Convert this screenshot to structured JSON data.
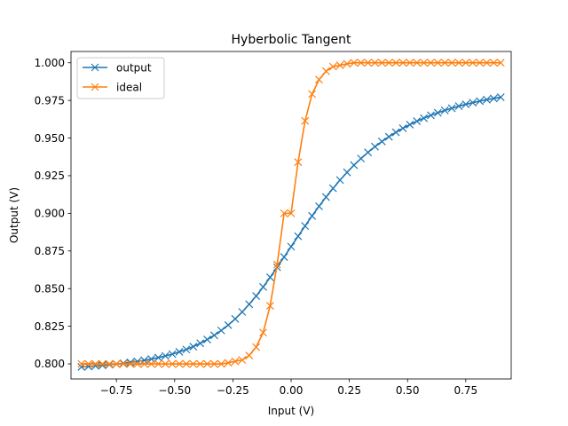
{
  "chart_data": {
    "type": "line",
    "title": "Hyberbolic Tangent",
    "xlabel": "Input (V)",
    "ylabel": "Output (V)",
    "xlim": [
      -0.945,
      0.945
    ],
    "ylim": [
      0.79,
      1.0075
    ],
    "xticks": [
      -0.75,
      -0.5,
      -0.25,
      0.0,
      0.25,
      0.5,
      0.75
    ],
    "xtick_labels": [
      "−0.75",
      "−0.50",
      "−0.25",
      "0.00",
      "0.25",
      "0.50",
      "0.75"
    ],
    "yticks": [
      0.8,
      0.825,
      0.85,
      0.875,
      0.9,
      0.925,
      0.95,
      0.975,
      1.0
    ],
    "ytick_labels": [
      "0.800",
      "0.825",
      "0.850",
      "0.875",
      "0.900",
      "0.925",
      "0.950",
      "0.975",
      "1.000"
    ],
    "grid": false,
    "legend_position": "top-left",
    "x": [
      -0.9,
      -0.87,
      -0.84,
      -0.81,
      -0.78,
      -0.75,
      -0.72,
      -0.69,
      -0.66,
      -0.63,
      -0.6,
      -0.57,
      -0.54,
      -0.51,
      -0.48,
      -0.45,
      -0.42,
      -0.39,
      -0.36,
      -0.33,
      -0.3,
      -0.27,
      -0.24,
      -0.21,
      -0.18,
      -0.15,
      -0.12,
      -0.09,
      -0.06,
      -0.03,
      0.0,
      0.03,
      0.06,
      0.09,
      0.12,
      0.15,
      0.18,
      0.21,
      0.24,
      0.27,
      0.3,
      0.33,
      0.36,
      0.39,
      0.42,
      0.45,
      0.48,
      0.51,
      0.54,
      0.57,
      0.6,
      0.63,
      0.66,
      0.69,
      0.72,
      0.75,
      0.78,
      0.81,
      0.84,
      0.87,
      0.9
    ],
    "series": [
      {
        "name": "output",
        "color": "#1f77b4",
        "marker": "x",
        "values": [
          0.798,
          0.7983,
          0.7987,
          0.7991,
          0.7995,
          0.7999,
          0.8004,
          0.801,
          0.8016,
          0.8024,
          0.8032,
          0.8042,
          0.8053,
          0.8065,
          0.808,
          0.8096,
          0.8115,
          0.8137,
          0.8162,
          0.819,
          0.8222,
          0.8258,
          0.8299,
          0.8345,
          0.8396,
          0.8451,
          0.8511,
          0.8575,
          0.8642,
          0.871,
          0.8779,
          0.8848,
          0.8916,
          0.8983,
          0.9047,
          0.9108,
          0.9166,
          0.9221,
          0.9272,
          0.932,
          0.9364,
          0.9405,
          0.9443,
          0.9477,
          0.9509,
          0.9538,
          0.9565,
          0.9589,
          0.9612,
          0.9632,
          0.9651,
          0.9668,
          0.9684,
          0.9698,
          0.9712,
          0.9724,
          0.9735,
          0.9745,
          0.9755,
          0.9763,
          0.9771
        ]
      },
      {
        "name": "ideal",
        "color": "#ff7f0e",
        "marker": "x",
        "values": [
          0.8,
          0.8,
          0.8,
          0.8,
          0.8,
          0.8,
          0.8,
          0.8,
          0.8,
          0.8,
          0.8,
          0.8,
          0.8,
          0.8,
          0.8,
          0.8,
          0.8,
          0.8,
          0.8,
          0.8,
          0.8,
          0.8007,
          0.8017,
          0.8026,
          0.8056,
          0.8112,
          0.8208,
          0.8386,
          0.866,
          0.9,
          0.9,
          0.934,
          0.9614,
          0.9792,
          0.9888,
          0.9944,
          0.9974,
          0.9983,
          0.9993,
          1.0,
          1.0,
          1.0,
          1.0,
          1.0,
          1.0,
          1.0,
          1.0,
          1.0,
          1.0,
          1.0,
          1.0,
          1.0,
          1.0,
          1.0,
          1.0,
          1.0,
          1.0,
          1.0,
          1.0,
          1.0,
          1.0
        ]
      }
    ]
  }
}
